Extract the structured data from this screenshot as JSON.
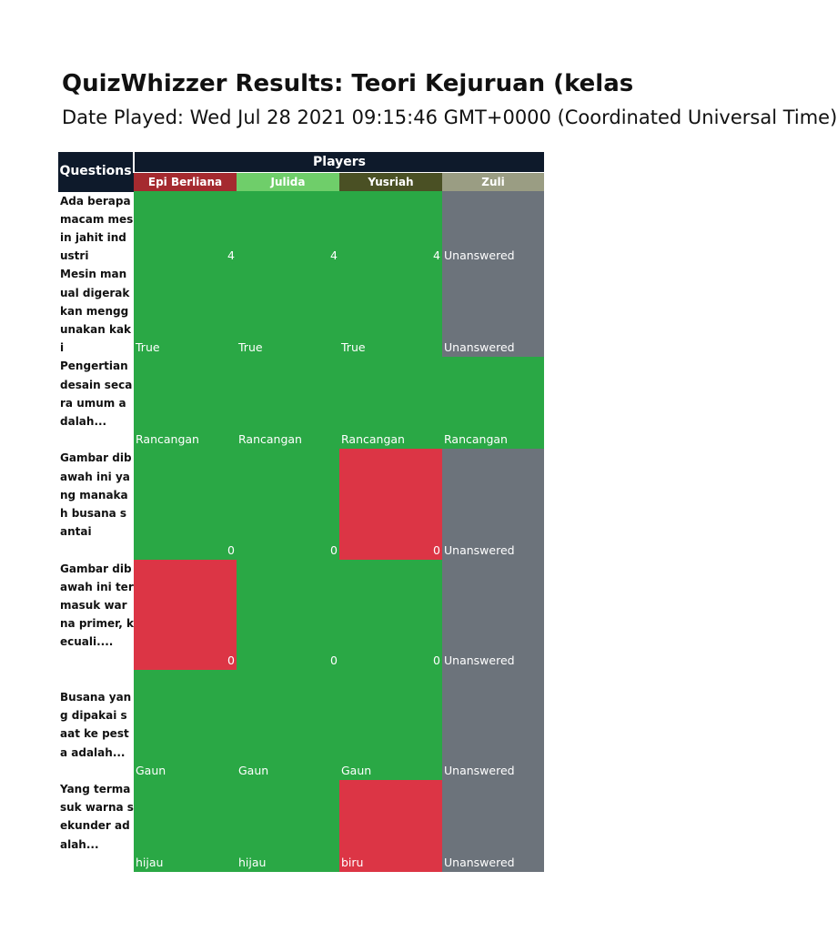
{
  "header": {
    "title": "QuizWhizzer Results: Teori Kejuruan (kelas",
    "subtitle": "Date Played: Wed Jul 28 2021 09:15:46 GMT+0000 (Coordinated Universal Time)"
  },
  "table": {
    "questions_label": "Questions",
    "players_label": "Players",
    "players": [
      {
        "name": "Epi Berliana",
        "color": "#a52a2f"
      },
      {
        "name": "Julida",
        "color": "#6fce6a"
      },
      {
        "name": "Yusriah",
        "color": "#4a5024"
      },
      {
        "name": "Zuli",
        "color": "#9a9d83"
      }
    ],
    "status_colors": {
      "correct": "#2aa845",
      "wrong": "#dc3545",
      "unanswered": "#6c737b"
    },
    "rows": [
      {
        "question": "Ada berapa macam mesin jahit industri",
        "lines": 4,
        "answers": [
          {
            "text": "4",
            "status": "correct",
            "align": "right"
          },
          {
            "text": "4",
            "status": "correct",
            "align": "right"
          },
          {
            "text": "4",
            "status": "correct",
            "align": "right"
          },
          {
            "text": "Unanswered",
            "status": "unanswered",
            "align": "left"
          }
        ]
      },
      {
        "question": "Mesin manual digerakkan menggunakan kaki",
        "lines": 5,
        "answers": [
          {
            "text": "True",
            "status": "correct",
            "align": "left"
          },
          {
            "text": "True",
            "status": "correct",
            "align": "left"
          },
          {
            "text": "True",
            "status": "correct",
            "align": "left"
          },
          {
            "text": "Unanswered",
            "status": "unanswered",
            "align": "left"
          }
        ]
      },
      {
        "question": "Pengertian desain secara umum adalah...",
        "lines": 5,
        "answers": [
          {
            "text": "Rancangan",
            "status": "correct",
            "align": "left"
          },
          {
            "text": "Rancangan",
            "status": "correct",
            "align": "left"
          },
          {
            "text": "Rancangan",
            "status": "correct",
            "align": "left"
          },
          {
            "text": "Rancangan",
            "status": "correct",
            "align": "left"
          }
        ]
      },
      {
        "question": "Gambar dibawah ini yang manakah busana santai",
        "lines": 6,
        "answers": [
          {
            "text": "0",
            "status": "correct",
            "align": "right"
          },
          {
            "text": "0",
            "status": "correct",
            "align": "right"
          },
          {
            "text": "0",
            "status": "wrong",
            "align": "right"
          },
          {
            "text": "Unanswered",
            "status": "unanswered",
            "align": "left"
          }
        ]
      },
      {
        "question": "Gambar dibawah ini termasuk warna primer, kecuali....",
        "lines": 6,
        "answers": [
          {
            "text": "0",
            "status": "wrong",
            "align": "right"
          },
          {
            "text": "0",
            "status": "correct",
            "align": "right"
          },
          {
            "text": "0",
            "status": "correct",
            "align": "right"
          },
          {
            "text": "Unanswered",
            "status": "unanswered",
            "align": "left"
          }
        ]
      },
      {
        "question": "Busana yang dipakai saat ke pesta adalah...",
        "lines": 5,
        "top_pad": 1,
        "answers": [
          {
            "text": "Gaun",
            "status": "correct",
            "align": "left"
          },
          {
            "text": "Gaun",
            "status": "correct",
            "align": "left"
          },
          {
            "text": "Gaun",
            "status": "correct",
            "align": "left"
          },
          {
            "text": "Unanswered",
            "status": "unanswered",
            "align": "left"
          }
        ]
      },
      {
        "question": "Yang termasuk warna sekunder adalah...",
        "lines": 5,
        "answers": [
          {
            "text": "hijau",
            "status": "correct",
            "align": "left"
          },
          {
            "text": "hijau",
            "status": "correct",
            "align": "left"
          },
          {
            "text": "biru",
            "status": "wrong",
            "align": "left"
          },
          {
            "text": "Unanswered",
            "status": "unanswered",
            "align": "left"
          }
        ]
      }
    ]
  }
}
